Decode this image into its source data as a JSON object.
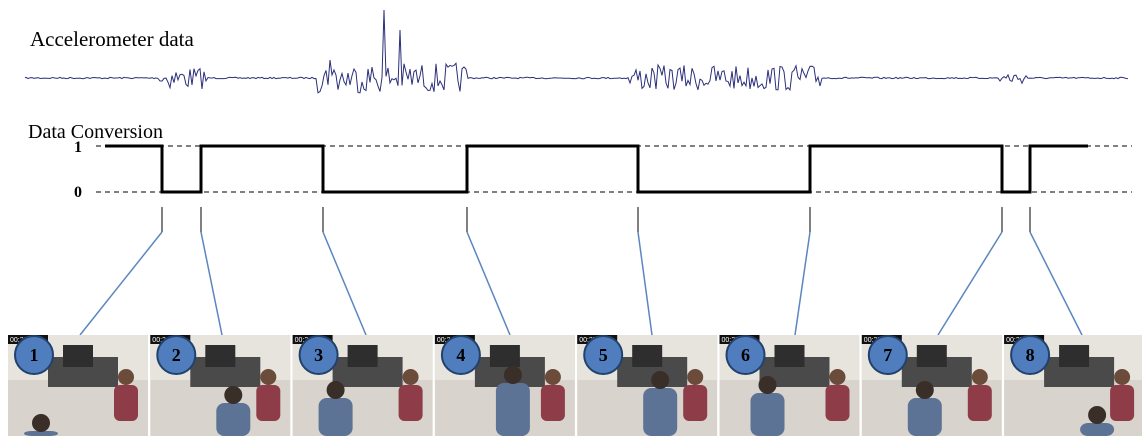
{
  "signal_label": "Accelerometer data",
  "conversion_label": "Data Conversion",
  "levels": {
    "high": "1",
    "low": "0"
  },
  "frames": [
    {
      "number": "1",
      "timestamp": "00:23"
    },
    {
      "number": "2",
      "timestamp": "00:24"
    },
    {
      "number": "3",
      "timestamp": "00:24"
    },
    {
      "number": "4",
      "timestamp": "00:24"
    },
    {
      "number": "5",
      "timestamp": "00:25"
    },
    {
      "number": "6",
      "timestamp": "00:25"
    },
    {
      "number": "7",
      "timestamp": "00:25"
    },
    {
      "number": "8",
      "timestamp": "00:25"
    }
  ]
}
